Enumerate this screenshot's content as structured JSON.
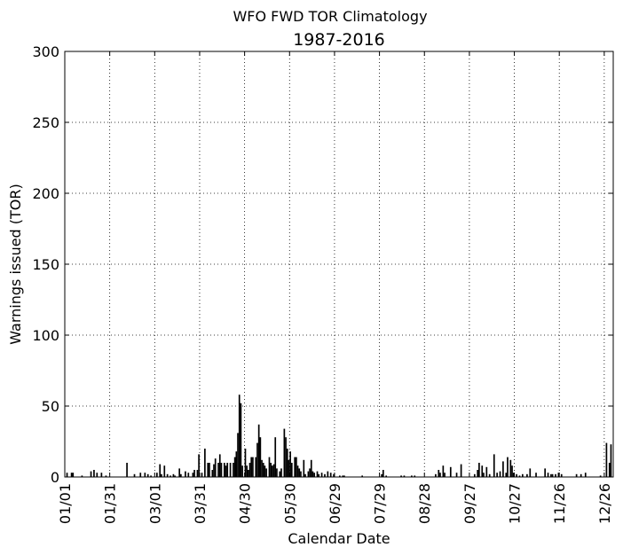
{
  "chart_data": {
    "type": "bar",
    "title": "WFO FWD TOR Climatology",
    "subtitle": "1987-2016",
    "x_label": "Calendar Date",
    "y_label": "Warnings issued (TOR)",
    "x": [
      2,
      5,
      6,
      12,
      18,
      20,
      22,
      25,
      28,
      42,
      47,
      51,
      54,
      56,
      58,
      62,
      64,
      65,
      67,
      69,
      71,
      73,
      74,
      77,
      78,
      81,
      83,
      86,
      87,
      89,
      90,
      92,
      94,
      96,
      97,
      99,
      100,
      101,
      103,
      104,
      105,
      107,
      108,
      109,
      111,
      113,
      114,
      115,
      116,
      117,
      118,
      119,
      121,
      122,
      123,
      124,
      125,
      126,
      128,
      129,
      130,
      131,
      132,
      133,
      134,
      135,
      137,
      138,
      139,
      140,
      141,
      142,
      144,
      145,
      147,
      148,
      149,
      150,
      151,
      152,
      154,
      155,
      156,
      157,
      158,
      160,
      161,
      163,
      164,
      165,
      166,
      167,
      169,
      170,
      172,
      174,
      176,
      178,
      180,
      184,
      186,
      187,
      199,
      212,
      213,
      215,
      225,
      227,
      232,
      234,
      248,
      250,
      251,
      253,
      254,
      258,
      262,
      265,
      274,
      276,
      277,
      279,
      280,
      282,
      284,
      287,
      289,
      291,
      293,
      295,
      296,
      298,
      299,
      300,
      302,
      304,
      306,
      309,
      311,
      315,
      321,
      323,
      325,
      326,
      328,
      330,
      332,
      342,
      345,
      348,
      358,
      362,
      364,
      365
    ],
    "values": [
      3,
      3,
      3,
      1,
      4,
      5,
      3,
      3,
      1,
      10,
      2,
      3,
      3,
      2,
      1,
      3,
      9,
      2,
      8,
      2,
      1,
      2,
      1,
      6,
      2,
      4,
      3,
      3,
      5,
      5,
      16,
      3,
      20,
      10,
      10,
      5,
      9,
      13,
      10,
      16,
      10,
      10,
      8,
      10,
      10,
      10,
      14,
      18,
      31,
      58,
      52,
      8,
      20,
      8,
      5,
      10,
      14,
      14,
      14,
      24,
      37,
      28,
      12,
      10,
      8,
      6,
      14,
      10,
      8,
      9,
      28,
      6,
      4,
      6,
      34,
      28,
      20,
      12,
      18,
      10,
      14,
      14,
      8,
      6,
      4,
      12,
      2,
      4,
      6,
      12,
      4,
      3,
      4,
      2,
      3,
      2,
      4,
      3,
      2,
      1,
      1,
      1,
      1,
      2,
      5,
      1,
      1,
      1,
      1,
      1,
      2,
      5,
      3,
      8,
      3,
      7,
      3,
      9,
      2,
      5,
      10,
      8,
      3,
      7,
      2,
      16,
      3,
      4,
      11,
      3,
      14,
      12,
      8,
      3,
      2,
      1,
      2,
      2,
      6,
      3,
      6,
      3,
      2,
      2,
      2,
      3,
      2,
      2,
      2,
      3,
      1,
      24,
      10,
      23
    ],
    "color": "#000000",
    "xlim": [
      1,
      367
    ],
    "xticks": [
      {
        "value": 1,
        "label": "01/01"
      },
      {
        "value": 31,
        "label": "01/31"
      },
      {
        "value": 61,
        "label": "03/01"
      },
      {
        "value": 91,
        "label": "03/31"
      },
      {
        "value": 121,
        "label": "04/30"
      },
      {
        "value": 151,
        "label": "05/30"
      },
      {
        "value": 181,
        "label": "06/29"
      },
      {
        "value": 211,
        "label": "07/29"
      },
      {
        "value": 241,
        "label": "08/28"
      },
      {
        "value": 271,
        "label": "09/27"
      },
      {
        "value": 301,
        "label": "10/27"
      },
      {
        "value": 331,
        "label": "11/26"
      },
      {
        "value": 361,
        "label": "12/26"
      }
    ],
    "ylim": [
      0,
      300
    ],
    "yticks": [
      0,
      50,
      100,
      150,
      200,
      250,
      300
    ],
    "grid": true
  }
}
